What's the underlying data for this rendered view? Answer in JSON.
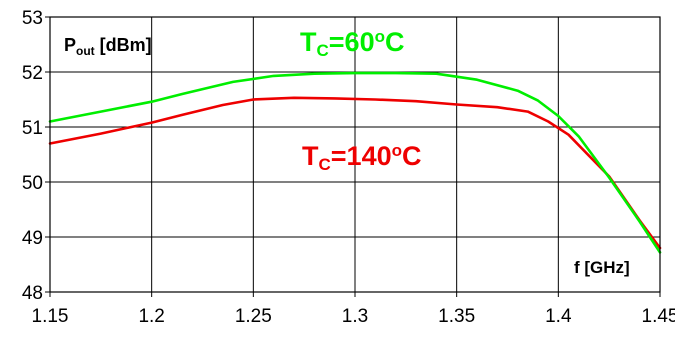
{
  "chart_data": {
    "type": "line",
    "title": "",
    "ylabel": {
      "main": "P",
      "sub": "out",
      "rest": " [dBm]"
    },
    "xlabel": "f [GHz]",
    "xlim": [
      1.15,
      1.45
    ],
    "ylim": [
      48,
      53
    ],
    "xticks": [
      "1.15",
      "1.2",
      "1.25",
      "1.3",
      "1.35",
      "1.4",
      "1.45"
    ],
    "xtick_values": [
      1.15,
      1.2,
      1.25,
      1.3,
      1.35,
      1.4,
      1.45
    ],
    "yticks": [
      "48",
      "49",
      "50",
      "51",
      "52",
      "53"
    ],
    "ytick_values": [
      48,
      49,
      50,
      51,
      52,
      53
    ],
    "grid": true,
    "series": [
      {
        "name": "TC=60oC",
        "color": "#00ee00",
        "x": [
          1.15,
          1.175,
          1.2,
          1.215,
          1.24,
          1.26,
          1.28,
          1.3,
          1.32,
          1.34,
          1.36,
          1.38,
          1.39,
          1.4,
          1.41,
          1.425,
          1.44,
          1.45
        ],
        "y": [
          51.1,
          51.28,
          51.46,
          51.6,
          51.82,
          51.93,
          51.97,
          51.98,
          51.98,
          51.97,
          51.86,
          51.66,
          51.48,
          51.2,
          50.83,
          50.08,
          49.28,
          48.72
        ]
      },
      {
        "name": "TC=140oC",
        "color": "#ee0000",
        "x": [
          1.15,
          1.175,
          1.2,
          1.215,
          1.235,
          1.25,
          1.27,
          1.29,
          1.31,
          1.33,
          1.35,
          1.37,
          1.385,
          1.395,
          1.405,
          1.425,
          1.44,
          1.45
        ],
        "y": [
          50.7,
          50.88,
          51.08,
          51.22,
          51.4,
          51.5,
          51.53,
          51.52,
          51.5,
          51.47,
          51.41,
          51.36,
          51.28,
          51.1,
          50.86,
          50.1,
          49.3,
          48.8
        ]
      }
    ],
    "annotations": [
      {
        "main": "T",
        "sub": "C",
        "rest": "=60",
        "sup": "o",
        "tail": "C",
        "color": "#00ee00"
      },
      {
        "main": "T",
        "sub": "C",
        "rest": "=140",
        "sup": "o",
        "tail": "C",
        "color": "#ee0000"
      }
    ]
  }
}
